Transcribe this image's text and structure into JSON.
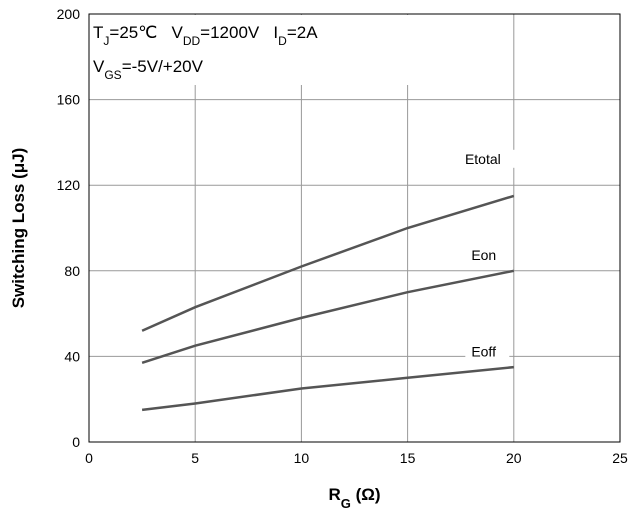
{
  "chart_data": {
    "type": "line",
    "title": "",
    "xlabel": "R",
    "xlabel_sub": "G",
    "xlabel_unit": " (Ω)",
    "ylabel": "Switching Loss (μJ)",
    "xlim": [
      0,
      25
    ],
    "ylim": [
      0,
      200
    ],
    "xticks": [
      0,
      5,
      10,
      15,
      20,
      25
    ],
    "yticks": [
      0,
      40,
      80,
      120,
      160,
      200
    ],
    "grid": true,
    "conditions": {
      "line1": [
        {
          "text": "T",
          "sub": false
        },
        {
          "text": "J",
          "sub": true
        },
        {
          "text": "=25℃   V",
          "sub": false
        },
        {
          "text": "DD",
          "sub": true
        },
        {
          "text": "=1200V   I",
          "sub": false
        },
        {
          "text": "D",
          "sub": true
        },
        {
          "text": "=2A",
          "sub": false
        }
      ],
      "line2": [
        {
          "text": "V",
          "sub": false
        },
        {
          "text": "GS",
          "sub": true
        },
        {
          "text": "=-5V/+20V",
          "sub": false
        }
      ]
    },
    "series": [
      {
        "name": "Etotal",
        "x": [
          2.5,
          5,
          10,
          15,
          20
        ],
        "y": [
          52,
          63,
          82,
          100,
          115
        ],
        "label_at": [
          17.7,
          130
        ]
      },
      {
        "name": "Eon",
        "x": [
          2.5,
          5,
          10,
          15,
          20
        ],
        "y": [
          37,
          45,
          58,
          70,
          80
        ],
        "label_at": [
          18,
          85
        ]
      },
      {
        "name": "Eoff",
        "x": [
          2.5,
          5,
          10,
          15,
          20
        ],
        "y": [
          15,
          18,
          25,
          30,
          35
        ],
        "label_at": [
          18,
          40
        ]
      }
    ],
    "line_color": "#555555"
  }
}
